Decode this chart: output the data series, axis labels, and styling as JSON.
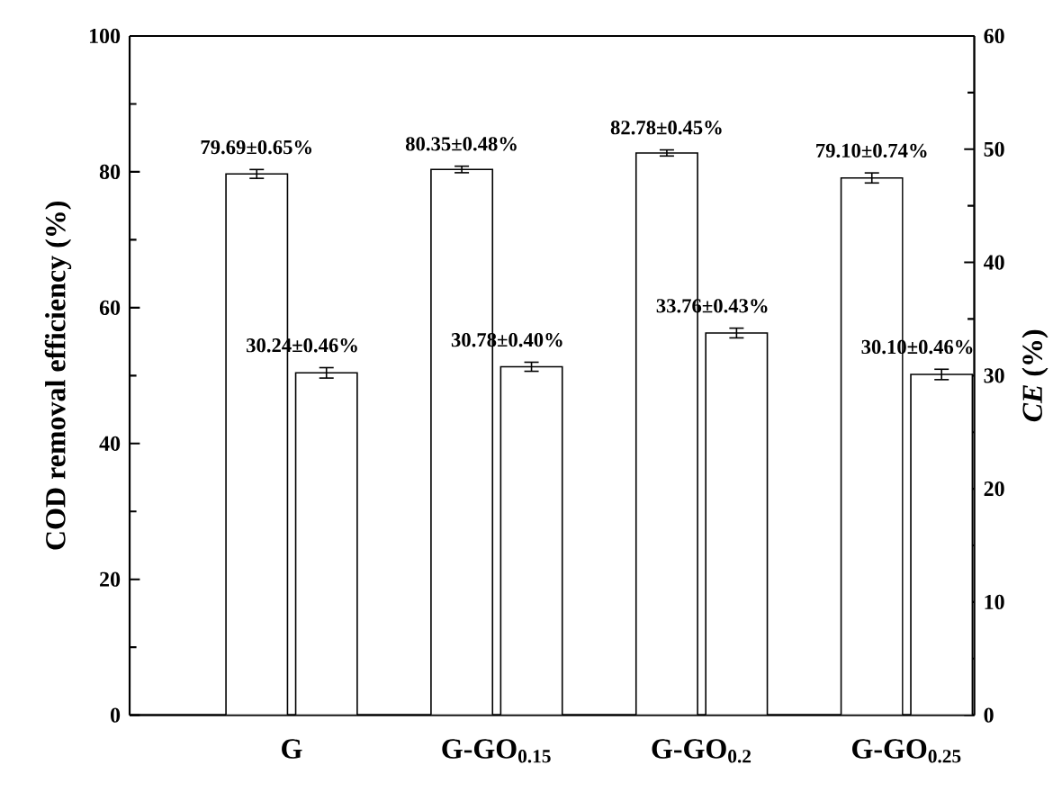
{
  "chart_data": {
    "type": "bar",
    "ylabel": "COD removal efficiency (%)",
    "y2label": "*CE* (%)",
    "categories": [
      "G",
      "G-GO$_{0.15}$",
      "G-GO$_{0.2}$",
      "G-GO$_{0.25}$"
    ],
    "ylim": [
      0,
      100
    ],
    "yticks": [
      0,
      20,
      40,
      60,
      80,
      100
    ],
    "y2lim": [
      0,
      60
    ],
    "y2ticks": [
      0,
      10,
      20,
      30,
      40,
      50,
      60
    ],
    "series": [
      {
        "color": "#ffffff",
        "values": [
          79.69,
          80.35,
          82.78,
          79.1
        ],
        "errors": [
          0.65,
          0.48,
          0.45,
          0.74
        ],
        "value_labels": [
          "79.69±0.65%",
          "80.35±0.48%",
          "82.78±0.45%",
          "79.10±0.74%"
        ]
      },
      {
        "axis": "y2",
        "color": "#ffffff",
        "values": [
          30.24,
          30.78,
          33.76,
          30.1
        ],
        "errors": [
          0.46,
          0.4,
          0.43,
          0.46
        ],
        "value_labels": [
          "30.24±0.46%",
          "30.78±0.40%",
          "33.76±0.43%",
          "30.10±0.46%"
        ]
      }
    ]
  }
}
